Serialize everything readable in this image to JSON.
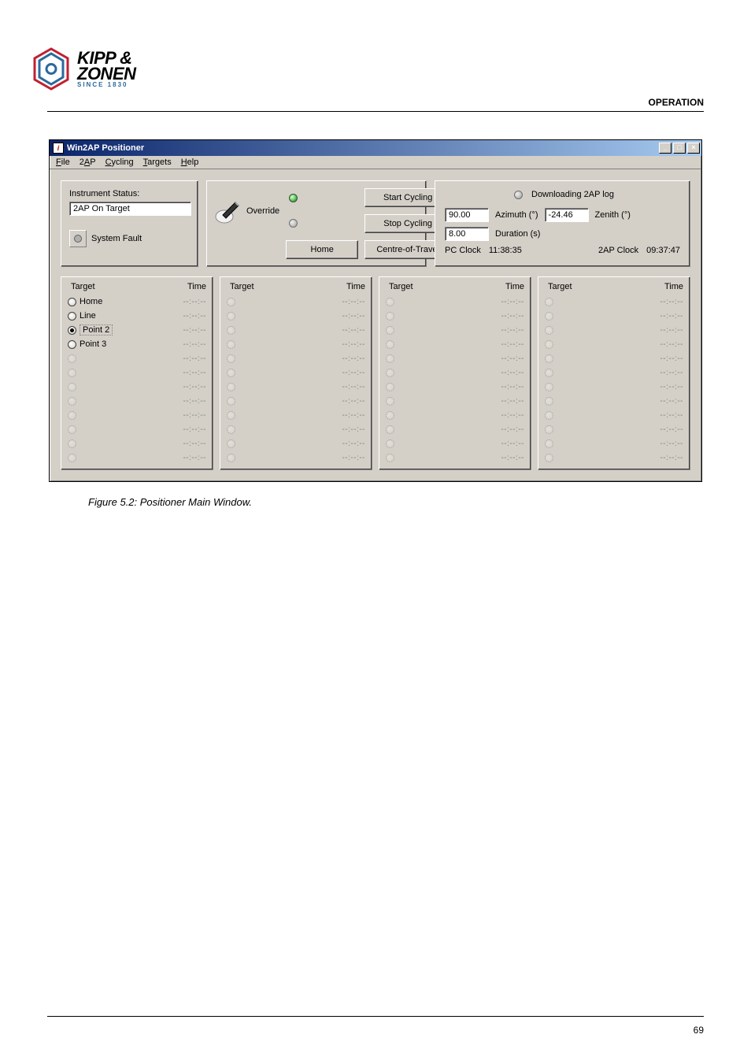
{
  "page": {
    "section_heading": "OPERATION",
    "figure_caption": "Figure 5.2:    Positioner Main Window.",
    "page_number": "69"
  },
  "logo": {
    "line1": "KIPP &",
    "line2": "ZONEN",
    "line3": "SINCE 1830",
    "brand_blue": "#2a6a9e",
    "brand_red": "#c02030"
  },
  "window": {
    "title": "Win2AP Positioner",
    "menus": [
      "File",
      "2AP",
      "Cycling",
      "Targets",
      "Help"
    ],
    "status": {
      "label": "Instrument Status:",
      "value": "2AP On Target",
      "system_fault_label": "System Fault"
    },
    "controls": {
      "start_cycling": "Start Cycling",
      "stop_cycling": "Stop Cycling",
      "home": "Home",
      "override": "Override",
      "centre_of_travel": "Centre-of-Travel"
    },
    "right": {
      "downloading_label": "Downloading 2AP log",
      "azimuth_value": "90.00",
      "azimuth_label": "Azimuth (°)",
      "zenith_value": "-24.46",
      "zenith_label": "Zenith (°)",
      "duration_value": "8.00",
      "duration_label": "Duration (s)",
      "pc_clock_label": "PC Clock",
      "pc_clock_value": "11:38:35",
      "ap_clock_label": "2AP Clock",
      "ap_clock_value": "09:37:47"
    },
    "target_header": {
      "target": "Target",
      "time": "Time"
    },
    "col1": [
      {
        "name": "Home",
        "time": "--:--:--",
        "selected": false,
        "enabled": true
      },
      {
        "name": "Line",
        "time": "--:--:--",
        "selected": false,
        "enabled": true
      },
      {
        "name": "Point 2",
        "time": "--:--:--",
        "selected": true,
        "enabled": true,
        "boxed": true
      },
      {
        "name": "Point 3",
        "time": "--:--:--",
        "selected": false,
        "enabled": true
      },
      {
        "name": "",
        "time": "--:--:--",
        "enabled": false
      },
      {
        "name": "",
        "time": "--:--:--",
        "enabled": false
      },
      {
        "name": "",
        "time": "--:--:--",
        "enabled": false
      },
      {
        "name": "",
        "time": "--:--:--",
        "enabled": false
      },
      {
        "name": "",
        "time": "--:--:--",
        "enabled": false
      },
      {
        "name": "",
        "time": "--:--:--",
        "enabled": false
      },
      {
        "name": "",
        "time": "--:--:--",
        "enabled": false
      },
      {
        "name": "",
        "time": "--:--:--",
        "enabled": false
      }
    ],
    "col234_rows": 12,
    "dim_time": "--:--:--"
  }
}
